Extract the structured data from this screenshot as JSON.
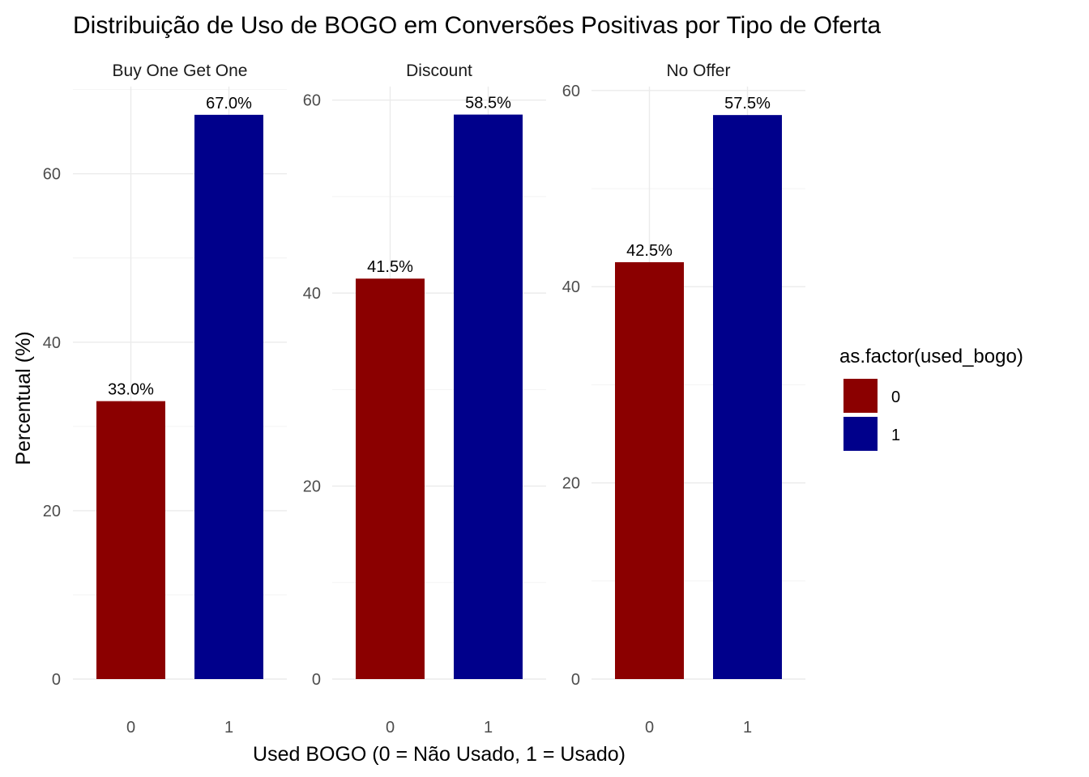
{
  "title": "Distribuição de Uso de BOGO em Conversões Positivas por Tipo de Oferta",
  "colors": {
    "0": "#8B0000",
    "1": "#00008B"
  },
  "chart_data": {
    "type": "bar",
    "layout": "faceted",
    "xlabel": "Used BOGO (0 = Não Usado, 1 = Usado)",
    "ylabel": "Percentual (%)",
    "legend": {
      "title": "as.factor(used_bogo)",
      "position": "right",
      "entries": [
        "0",
        "1"
      ]
    },
    "grid": true,
    "categories": [
      "0",
      "1"
    ],
    "facets": [
      {
        "name": "Buy One Get One",
        "values": [
          33.0,
          67.0
        ],
        "labels": [
          "33.0%",
          "67.0%"
        ],
        "ylim": [
          0,
          70.35
        ],
        "yticks": [
          0,
          20,
          40,
          60
        ]
      },
      {
        "name": "Discount",
        "values": [
          41.5,
          58.5
        ],
        "labels": [
          "41.5%",
          "58.5%"
        ],
        "ylim": [
          0,
          61.4
        ],
        "yticks": [
          0,
          20,
          40,
          60
        ]
      },
      {
        "name": "No Offer",
        "values": [
          42.5,
          57.5
        ],
        "labels": [
          "42.5%",
          "57.5%"
        ],
        "ylim": [
          0,
          60.4
        ],
        "yticks": [
          0,
          20,
          40,
          60
        ]
      }
    ]
  }
}
